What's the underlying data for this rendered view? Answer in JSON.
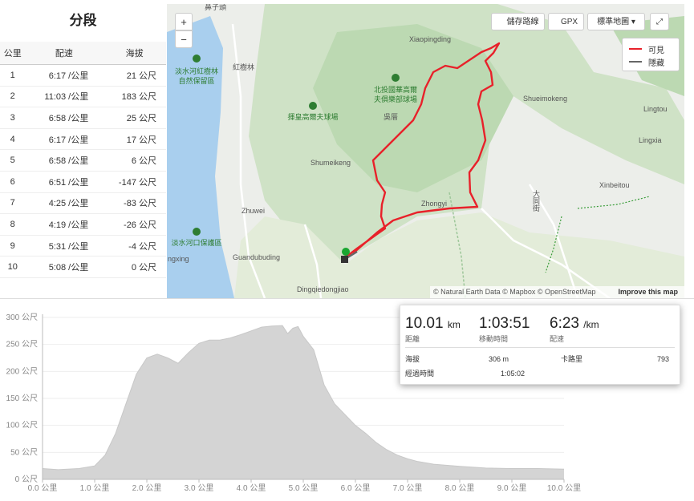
{
  "splits": {
    "title": "分段",
    "columns": [
      "公里",
      "配速",
      "海拔"
    ],
    "rows": [
      [
        "1",
        "6:17 /公里",
        "21 公尺"
      ],
      [
        "2",
        "11:03 /公里",
        "183 公尺"
      ],
      [
        "3",
        "6:58 /公里",
        "25 公尺"
      ],
      [
        "4",
        "6:17 /公里",
        "17 公尺"
      ],
      [
        "5",
        "6:58 /公里",
        "6 公尺"
      ],
      [
        "6",
        "6:51 /公里",
        "-147 公尺"
      ],
      [
        "7",
        "4:25 /公里",
        "-83 公尺"
      ],
      [
        "8",
        "4:19 /公里",
        "-26 公尺"
      ],
      [
        "9",
        "5:31 /公里",
        "-4 公尺"
      ],
      [
        "10",
        "5:08 /公里",
        "0 公尺"
      ]
    ]
  },
  "map": {
    "controls": {
      "zoom_in": "+",
      "zoom_out": "−",
      "save_route": "儲存路線",
      "gpx": "GPX",
      "map_style": "標準地圖"
    },
    "legend": {
      "visible": "可見",
      "hidden": "隱藏"
    },
    "labels": [
      "鼻子頭",
      "Xiaopingding",
      "紅樹林",
      "淡水河紅樹林",
      "自然保留區",
      "北投國華高爾",
      "夫俱樂部球場",
      "揮皇高爾夫球場",
      "吳厝",
      "Shueimokeng",
      "Lingtou",
      "Lingxia",
      "Shumeikeng",
      "Xinbeitou",
      "Zhongyi",
      "Zhuwei",
      "Guandubuding",
      "淡水河口保護區",
      "ngxing",
      "Dingqiedongjiao",
      "大同街"
    ],
    "attribution": "© Natural Earth Data © Mapbox © OpenStreetMap",
    "improve": "Improve this map"
  },
  "stats": {
    "distance": {
      "value": "10.01",
      "unit": "km",
      "label": "距離"
    },
    "moving_time": {
      "value": "1:03:51",
      "label": "移動時間"
    },
    "pace": {
      "value": "6:23",
      "unit": "/km",
      "label": "配速"
    },
    "elevation": {
      "label": "海拔",
      "value": "306 m"
    },
    "calories": {
      "label": "卡路里",
      "value": "793"
    },
    "elapsed_time": {
      "label": "經過時間",
      "value": "1:05:02"
    }
  },
  "elevation_profile": {
    "x": [
      0,
      0.3,
      0.7,
      1.0,
      1.2,
      1.4,
      1.6,
      1.8,
      2.0,
      2.2,
      2.4,
      2.6,
      2.8,
      3.0,
      3.2,
      3.4,
      3.6,
      3.8,
      4.0,
      4.2,
      4.4,
      4.6,
      4.7,
      4.8,
      4.9,
      5.0,
      5.2,
      5.4,
      5.6,
      5.8,
      6.0,
      6.2,
      6.4,
      6.6,
      6.8,
      7.0,
      7.2,
      7.5,
      8.0,
      8.5,
      9.0,
      9.5,
      10.0
    ],
    "values": [
      20,
      18,
      20,
      25,
      45,
      85,
      140,
      195,
      225,
      232,
      225,
      215,
      235,
      252,
      258,
      258,
      262,
      268,
      275,
      282,
      284,
      285,
      270,
      280,
      283,
      265,
      240,
      175,
      140,
      120,
      100,
      85,
      68,
      55,
      45,
      38,
      33,
      28,
      24,
      21,
      20,
      20,
      19
    ],
    "xlim": [
      0,
      10
    ],
    "ylim": [
      0,
      300
    ],
    "xticks": [
      {
        "value": 0,
        "label": "0.0 公里"
      },
      {
        "value": 1,
        "label": "1.0 公里"
      },
      {
        "value": 2,
        "label": "2.0 公里"
      },
      {
        "value": 3,
        "label": "3.0 公里"
      },
      {
        "value": 4,
        "label": "4.0 公里"
      },
      {
        "value": 5,
        "label": "5.0 公里"
      },
      {
        "value": 6,
        "label": "6.0 公里"
      },
      {
        "value": 7,
        "label": "7.0 公里"
      },
      {
        "value": 8,
        "label": "8.0 公里"
      },
      {
        "value": 9,
        "label": "9.0 公里"
      },
      {
        "value": 10,
        "label": "10.0 公里"
      }
    ],
    "yticks": [
      {
        "value": 0,
        "label": "0 公尺"
      },
      {
        "value": 50,
        "label": "50 公尺"
      },
      {
        "value": 100,
        "label": "100 公尺"
      },
      {
        "value": 150,
        "label": "150 公尺"
      },
      {
        "value": 200,
        "label": "200 公尺"
      },
      {
        "value": 250,
        "label": "250 公尺"
      },
      {
        "value": 300,
        "label": "300 公尺"
      }
    ]
  }
}
